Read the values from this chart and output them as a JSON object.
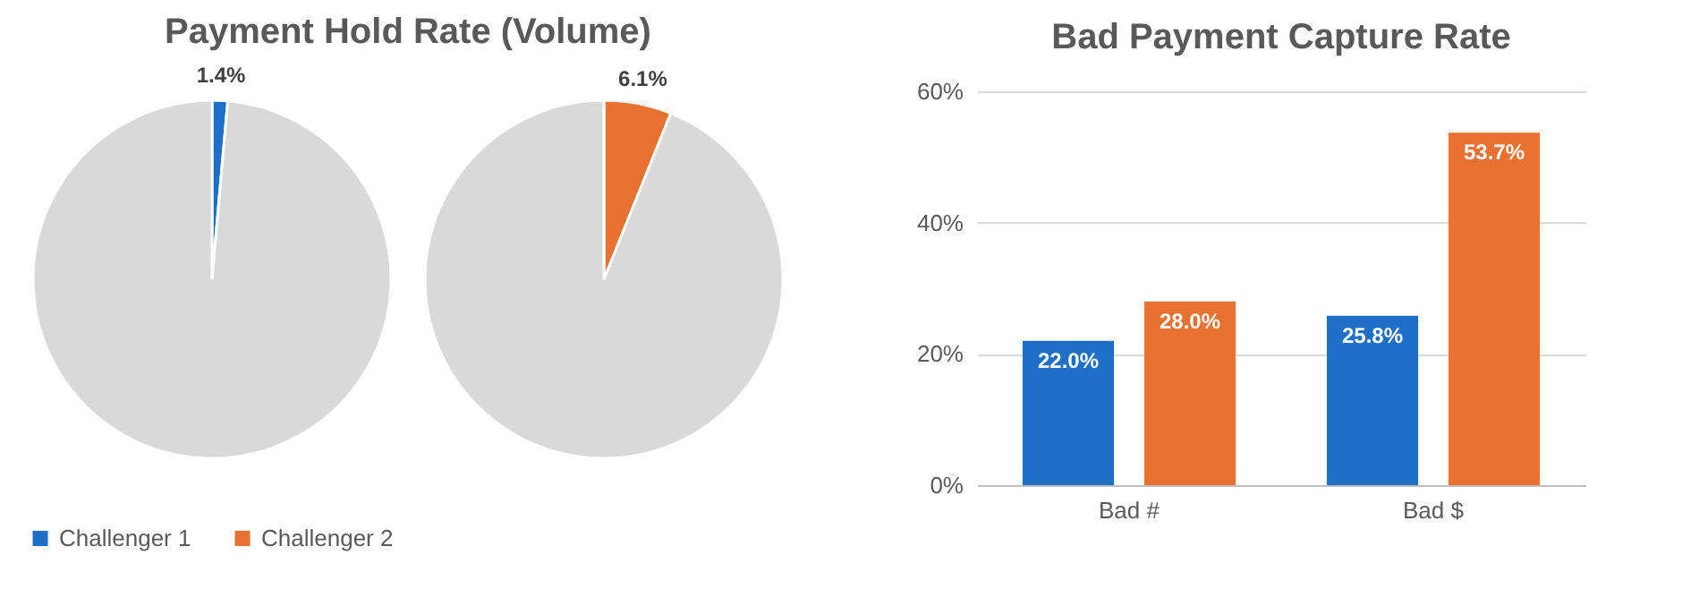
{
  "chart_data": [
    {
      "type": "pie",
      "title": "Payment Hold Rate (Volume)",
      "categories": [
        "Challenger 1",
        null
      ],
      "values": [
        1.4,
        98.6
      ],
      "colors": [
        "#1f6fc6",
        "#d9d9d9"
      ],
      "value_labels": [
        "1.4%",
        null
      ],
      "legend": "bottom"
    },
    {
      "type": "pie",
      "categories": [
        "Challenger 2",
        null
      ],
      "values": [
        6.1,
        93.9
      ],
      "colors": [
        "#e97132",
        "#d9d9d9"
      ],
      "value_labels": [
        "6.1%",
        null
      ],
      "legend": "bottom"
    },
    {
      "type": "bar",
      "title": "Bad Payment Capture Rate",
      "categories": [
        "Bad #",
        "Bad $"
      ],
      "series": [
        {
          "color": "#1f6fc6",
          "values": [
            22.0,
            25.8
          ],
          "value_labels": [
            "22.0%",
            "25.8%"
          ]
        },
        {
          "color": "#e97132",
          "values": [
            28.0,
            53.7
          ],
          "value_labels": [
            "28.0%",
            "53.7%"
          ]
        }
      ],
      "ylim": [
        0,
        60
      ],
      "yticks": [
        {
          "value": 0,
          "label": "0%"
        },
        {
          "value": 20,
          "label": "20%"
        },
        {
          "value": 40,
          "label": "40%"
        },
        {
          "value": 60,
          "label": "60%"
        }
      ],
      "grid": "y",
      "legend": false
    }
  ]
}
